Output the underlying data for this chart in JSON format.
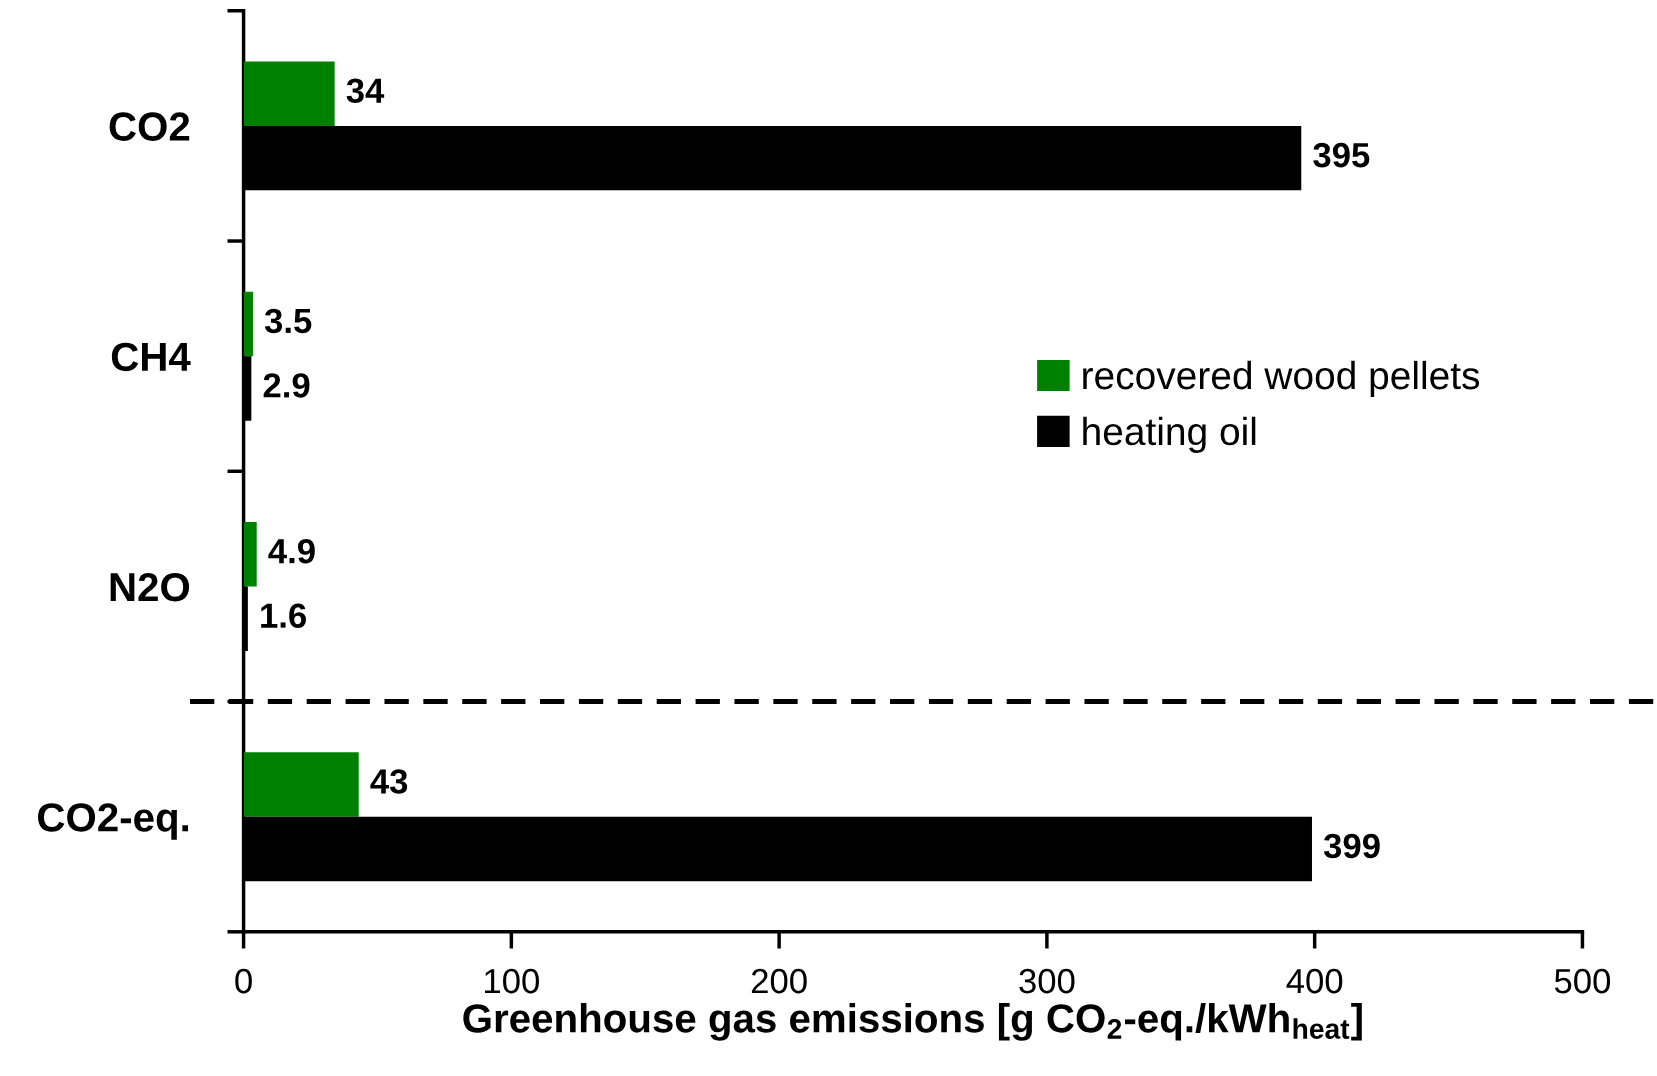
{
  "chart_data": {
    "type": "bar",
    "orientation": "horizontal",
    "xlabel": "Greenhouse gas emissions [g CO$_{2}$-eq./kWh$_{heat}$]",
    "categories": [
      "CO2",
      "CH4",
      "N2O",
      "CO2-eq."
    ],
    "series": [
      {
        "name": "recovered wood pellets",
        "color": "#008000",
        "values": [
          34,
          3.5,
          4.9,
          43
        ]
      },
      {
        "name": "heating oil",
        "color": "#000000",
        "values": [
          395,
          2.9,
          1.6,
          399
        ]
      }
    ],
    "xlim": [
      0,
      500
    ],
    "xticks": [
      0,
      100,
      200,
      300,
      400,
      500
    ],
    "data_labels": true,
    "legend": "right",
    "grid": false
  }
}
